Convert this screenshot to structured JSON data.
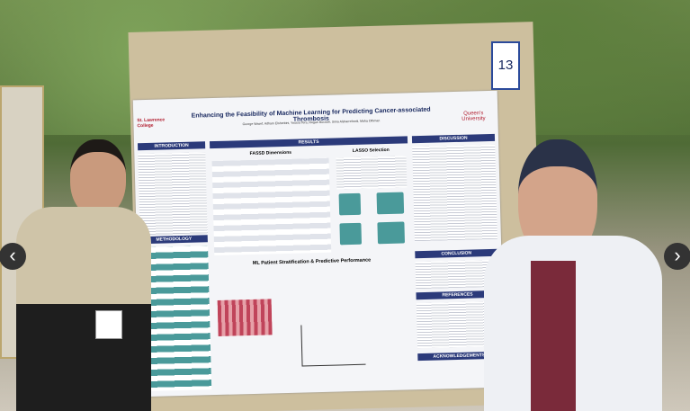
{
  "board_number": "13",
  "poster": {
    "title": "Enhancing the Feasibility of Machine Learning for Predicting Cancer-associated Thrombosis",
    "authors": "George Wasef, Adham Elsherbini, Yousra Tera, Regan Buccioli, Sima Alsharrefoodi, Maha Othman",
    "logo_left": "St. Lawrence College",
    "logo_right": "Queen's University",
    "sections": {
      "introduction": "INTRODUCTION",
      "results": "RESULTS",
      "discussion": "DISCUSSION",
      "methodology": "METHODOLOGY",
      "conclusion": "CONCLUSION",
      "references": "REFERENCES",
      "acknowledgements": "ACKNOWLEDGEMENTS"
    },
    "subheadings": {
      "dimensions": "FASSD Dimensions",
      "lasso": "LASSO Selection",
      "performance": "ML Patient Stratification & Predictive Performance"
    }
  }
}
